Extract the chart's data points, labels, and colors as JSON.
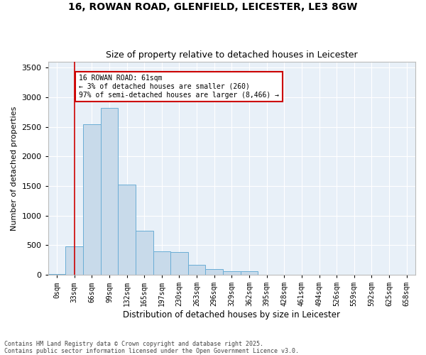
{
  "title_line1": "16, ROWAN ROAD, GLENFIELD, LEICESTER, LE3 8GW",
  "title_line2": "Size of property relative to detached houses in Leicester",
  "xlabel": "Distribution of detached houses by size in Leicester",
  "ylabel": "Number of detached properties",
  "bar_color": "#c8daea",
  "bar_edge_color": "#6aadd5",
  "background_color": "#e8f0f8",
  "fig_background": "#ffffff",
  "grid_color": "#ffffff",
  "annotation_text": "16 ROWAN ROAD: 61sqm\n← 3% of detached houses are smaller (260)\n97% of semi-detached houses are larger (8,466) →",
  "annotation_box_color": "#ffffff",
  "annotation_box_edge_color": "#cc0000",
  "marker_line_color": "#cc0000",
  "footer_text": "Contains HM Land Registry data © Crown copyright and database right 2025.\nContains public sector information licensed under the Open Government Licence v3.0.",
  "bin_labels": [
    "0sqm",
    "33sqm",
    "66sqm",
    "99sqm",
    "132sqm",
    "165sqm",
    "197sqm",
    "230sqm",
    "263sqm",
    "296sqm",
    "329sqm",
    "362sqm",
    "395sqm",
    "428sqm",
    "461sqm",
    "494sqm",
    "526sqm",
    "559sqm",
    "592sqm",
    "625sqm",
    "658sqm"
  ],
  "bar_heights": [
    10,
    480,
    2540,
    2820,
    1530,
    740,
    400,
    380,
    170,
    100,
    60,
    60,
    0,
    0,
    0,
    0,
    0,
    0,
    0,
    0,
    0
  ],
  "ylim": [
    0,
    3600
  ],
  "yticks": [
    0,
    500,
    1000,
    1500,
    2000,
    2500,
    3000,
    3500
  ],
  "marker_bin_index": 1,
  "figsize": [
    6.0,
    5.0
  ],
  "dpi": 100
}
